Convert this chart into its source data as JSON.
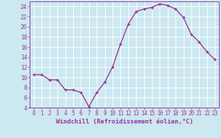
{
  "x": [
    0,
    1,
    2,
    3,
    4,
    5,
    6,
    7,
    8,
    9,
    10,
    11,
    12,
    13,
    14,
    15,
    16,
    17,
    18,
    19,
    20,
    21,
    22,
    23
  ],
  "y": [
    10.5,
    10.5,
    9.5,
    9.5,
    7.5,
    7.5,
    7.0,
    4.2,
    7.0,
    9.0,
    12.0,
    16.5,
    20.5,
    23.0,
    23.5,
    23.8,
    24.5,
    24.2,
    23.5,
    21.8,
    18.5,
    17.0,
    15.0,
    13.5
  ],
  "line_color": "#993399",
  "marker": "+",
  "markersize": 3.5,
  "linewidth": 1.0,
  "xlabel": "Windchill (Refroidissement éolien,°C)",
  "xlabel_fontsize": 6.5,
  "bg_color": "#cce8f0",
  "grid_color": "#ffffff",
  "tick_color": "#993399",
  "label_color": "#993399",
  "ylim": [
    4,
    25
  ],
  "xlim": [
    -0.5,
    23.5
  ],
  "yticks": [
    4,
    6,
    8,
    10,
    12,
    14,
    16,
    18,
    20,
    22,
    24
  ],
  "xticks": [
    0,
    1,
    2,
    3,
    4,
    5,
    6,
    7,
    8,
    9,
    10,
    11,
    12,
    13,
    14,
    15,
    16,
    17,
    18,
    19,
    20,
    21,
    22,
    23
  ],
  "tick_fontsize": 5.5,
  "spine_color": "#993399"
}
